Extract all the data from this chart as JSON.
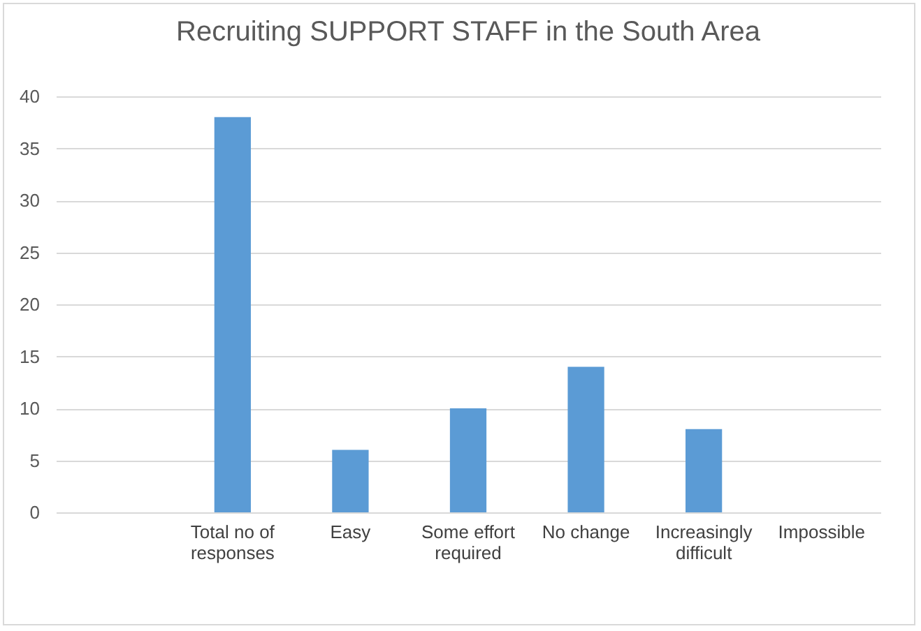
{
  "chart_data": {
    "type": "bar",
    "title": "Recruiting SUPPORT STAFF in the South Area",
    "categories": [
      null,
      "Total no of responses",
      "Easy",
      "Some effort required",
      "No change",
      "Increasingly difficult",
      "Impossible"
    ],
    "values": [
      null,
      38,
      6,
      10,
      14,
      8,
      0
    ],
    "color": "#5b9bd5",
    "ylim": [
      0,
      40
    ],
    "yticks": [
      0,
      5,
      10,
      15,
      20,
      25,
      30,
      35,
      40
    ],
    "grid": "y"
  }
}
